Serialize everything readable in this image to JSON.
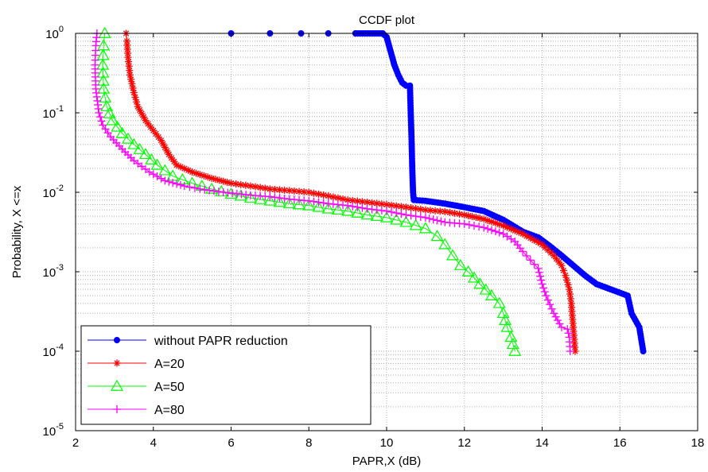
{
  "chart_data": {
    "type": "line",
    "title": "CCDF plot",
    "xlabel": "PAPR,X (dB)",
    "ylabel": "Probability, X <=x",
    "xlim": [
      2,
      18
    ],
    "ylim": [
      1e-05,
      1
    ],
    "yscale": "log",
    "grid": true,
    "legend_position": "bottom-left",
    "x_ticks": [
      "2",
      "4",
      "6",
      "8",
      "10",
      "12",
      "14",
      "16",
      "18"
    ],
    "y_ticks": [
      {
        "base": "10",
        "exp": "-5"
      },
      {
        "base": "10",
        "exp": "-4"
      },
      {
        "base": "10",
        "exp": "-3"
      },
      {
        "base": "10",
        "exp": "-2"
      },
      {
        "base": "10",
        "exp": "-1"
      },
      {
        "base": "10",
        "exp": "0"
      }
    ],
    "series": [
      {
        "name": "without PAPR reduction",
        "color": "#0000ff",
        "marker": "dot",
        "points": [
          [
            6.0,
            1
          ],
          [
            7.0,
            1
          ],
          [
            7.8,
            1
          ],
          [
            8.5,
            1
          ],
          [
            9.2,
            1
          ],
          [
            9.9,
            1
          ],
          [
            10.0,
            0.9
          ],
          [
            10.1,
            0.6
          ],
          [
            10.2,
            0.4
          ],
          [
            10.3,
            0.3
          ],
          [
            10.4,
            0.24
          ],
          [
            10.5,
            0.22
          ],
          [
            10.6,
            0.22
          ],
          [
            10.62,
            0.1
          ],
          [
            10.64,
            0.05
          ],
          [
            10.66,
            0.02
          ],
          [
            10.68,
            0.01
          ],
          [
            10.7,
            0.008
          ],
          [
            11.0,
            0.0078
          ],
          [
            11.5,
            0.0072
          ],
          [
            12.0,
            0.0065
          ],
          [
            12.5,
            0.0058
          ],
          [
            13.0,
            0.0045
          ],
          [
            13.5,
            0.0032
          ],
          [
            13.9,
            0.0027
          ],
          [
            14.2,
            0.0021
          ],
          [
            14.5,
            0.0016
          ],
          [
            14.8,
            0.0012
          ],
          [
            15.1,
            0.0009
          ],
          [
            15.4,
            0.0007
          ],
          [
            16.2,
            0.0005
          ],
          [
            16.3,
            0.0003
          ],
          [
            16.5,
            0.0002
          ],
          [
            16.6,
            0.0001
          ]
        ]
      },
      {
        "name": "A=20",
        "color": "#ff0000",
        "marker": "star",
        "points": [
          [
            3.3,
            1
          ],
          [
            3.32,
            0.8
          ],
          [
            3.35,
            0.5
          ],
          [
            3.4,
            0.3
          ],
          [
            3.5,
            0.18
          ],
          [
            3.6,
            0.12
          ],
          [
            3.8,
            0.08
          ],
          [
            4.0,
            0.06
          ],
          [
            4.2,
            0.045
          ],
          [
            4.4,
            0.03
          ],
          [
            4.6,
            0.022
          ],
          [
            5.0,
            0.018
          ],
          [
            5.5,
            0.015
          ],
          [
            6.0,
            0.013
          ],
          [
            6.5,
            0.012
          ],
          [
            7.0,
            0.011
          ],
          [
            7.5,
            0.0105
          ],
          [
            8.0,
            0.01
          ],
          [
            8.5,
            0.009
          ],
          [
            9.0,
            0.008
          ],
          [
            9.5,
            0.0075
          ],
          [
            10.0,
            0.007
          ],
          [
            10.5,
            0.0065
          ],
          [
            11.0,
            0.006
          ],
          [
            11.5,
            0.0057
          ],
          [
            12.0,
            0.0052
          ],
          [
            12.5,
            0.0046
          ],
          [
            13.0,
            0.0038
          ],
          [
            13.5,
            0.003
          ],
          [
            14.0,
            0.0022
          ],
          [
            14.3,
            0.0016
          ],
          [
            14.5,
            0.0012
          ],
          [
            14.6,
            0.0009
          ],
          [
            14.7,
            0.0006
          ],
          [
            14.75,
            0.0004
          ],
          [
            14.8,
            0.0002
          ],
          [
            14.85,
            0.0001
          ]
        ]
      },
      {
        "name": "A=50",
        "color": "#00ff00",
        "marker": "triangle",
        "points": [
          [
            2.75,
            1
          ],
          [
            2.72,
            0.7
          ],
          [
            2.7,
            0.4
          ],
          [
            2.72,
            0.2
          ],
          [
            2.8,
            0.12
          ],
          [
            2.95,
            0.08
          ],
          [
            3.2,
            0.055
          ],
          [
            3.5,
            0.04
          ],
          [
            3.8,
            0.03
          ],
          [
            4.1,
            0.022
          ],
          [
            4.5,
            0.016
          ],
          [
            5.0,
            0.013
          ],
          [
            5.5,
            0.011
          ],
          [
            6.0,
            0.0095
          ],
          [
            6.5,
            0.0085
          ],
          [
            7.0,
            0.0078
          ],
          [
            7.5,
            0.0072
          ],
          [
            8.0,
            0.0068
          ],
          [
            8.5,
            0.0062
          ],
          [
            9.0,
            0.0058
          ],
          [
            9.5,
            0.0052
          ],
          [
            10.0,
            0.0048
          ],
          [
            10.5,
            0.0042
          ],
          [
            11.0,
            0.0035
          ],
          [
            11.3,
            0.0028
          ],
          [
            11.5,
            0.0022
          ],
          [
            11.7,
            0.0016
          ],
          [
            11.9,
            0.0012
          ],
          [
            12.1,
            0.001
          ],
          [
            12.4,
            0.0007
          ],
          [
            12.7,
            0.0005
          ],
          [
            12.9,
            0.0004
          ],
          [
            13.0,
            0.0003
          ],
          [
            13.1,
            0.0002
          ],
          [
            13.2,
            0.00015
          ],
          [
            13.3,
            0.0001
          ]
        ]
      },
      {
        "name": "A=80",
        "color": "#ff00ff",
        "marker": "plus",
        "points": [
          [
            2.55,
            1
          ],
          [
            2.52,
            0.7
          ],
          [
            2.5,
            0.4
          ],
          [
            2.52,
            0.2
          ],
          [
            2.6,
            0.1
          ],
          [
            2.7,
            0.07
          ],
          [
            2.9,
            0.05
          ],
          [
            3.2,
            0.035
          ],
          [
            3.5,
            0.025
          ],
          [
            3.9,
            0.018
          ],
          [
            4.3,
            0.014
          ],
          [
            4.8,
            0.012
          ],
          [
            5.2,
            0.011
          ],
          [
            5.8,
            0.01
          ],
          [
            6.5,
            0.0092
          ],
          [
            7.0,
            0.0088
          ],
          [
            7.5,
            0.0082
          ],
          [
            8.0,
            0.0078
          ],
          [
            8.5,
            0.0072
          ],
          [
            9.0,
            0.0068
          ],
          [
            9.5,
            0.0062
          ],
          [
            10.0,
            0.0058
          ],
          [
            10.5,
            0.0052
          ],
          [
            11.0,
            0.0048
          ],
          [
            11.5,
            0.0042
          ],
          [
            12.0,
            0.004
          ],
          [
            12.5,
            0.0036
          ],
          [
            13.0,
            0.003
          ],
          [
            13.3,
            0.0024
          ],
          [
            13.5,
            0.0018
          ],
          [
            13.7,
            0.0014
          ],
          [
            13.9,
            0.0011
          ],
          [
            14.0,
            0.0007
          ],
          [
            14.1,
            0.0005
          ],
          [
            14.3,
            0.0003
          ],
          [
            14.5,
            0.0002
          ],
          [
            14.65,
            0.00019
          ],
          [
            14.7,
            0.00015
          ],
          [
            14.72,
            0.0001
          ]
        ]
      }
    ]
  }
}
